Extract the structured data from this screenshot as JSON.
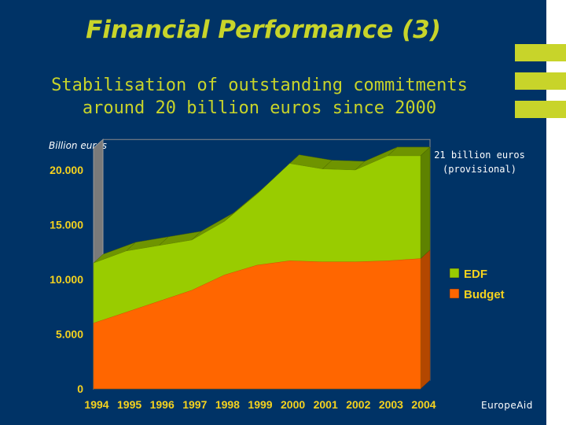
{
  "slide": {
    "title": "Financial Performance (3)",
    "subtitle_line1": "Stabilisation of outstanding commitments",
    "subtitle_line2": "around 20 billion euros since 2000",
    "annotation_line1": "21 billion euros",
    "annotation_line2": "(provisional)",
    "logo_text": "EuropeAid"
  },
  "chart_data": {
    "type": "area",
    "stacked": true,
    "ylabel": "Billion euros",
    "x": [
      "1994",
      "1995",
      "1996",
      "1997",
      "1998",
      "1999",
      "2000",
      "2001",
      "2002",
      "2003",
      "2004"
    ],
    "series": [
      {
        "name": "Budget",
        "values": [
          6000,
          7000,
          8000,
          9000,
          10400,
          11300,
          11700,
          11600,
          11600,
          11700,
          11900
        ],
        "color": "#ff6600"
      },
      {
        "name": "EDF",
        "values": [
          5500,
          5600,
          5100,
          4600,
          4900,
          6500,
          8900,
          8500,
          8400,
          9600,
          9400
        ],
        "color": "#99cc00"
      }
    ],
    "ylim": [
      0,
      22000
    ],
    "yticks": [
      "0",
      "5.000",
      "10.000",
      "15.000",
      "20.000"
    ],
    "ytick_values": [
      0,
      5000,
      10000,
      15000,
      20000
    ],
    "legend_order": [
      "EDF",
      "Budget"
    ],
    "legend_position": "right",
    "grid": false
  }
}
